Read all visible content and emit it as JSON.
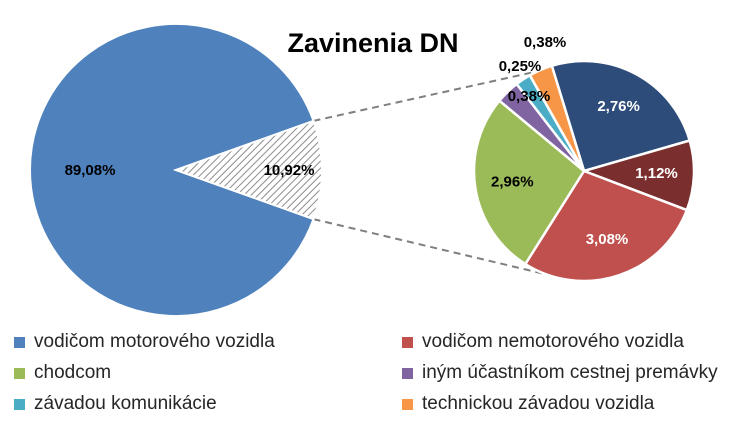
{
  "chart_data": {
    "type": "pie",
    "title": "Zavinenia DN",
    "main_pie": {
      "slices": [
        {
          "key": "motor",
          "label": "89,08%",
          "value": 89.08,
          "color": "#4F81BD"
        },
        {
          "key": "other",
          "label": "10,92%",
          "value": 10.92,
          "pattern": "hatched"
        }
      ]
    },
    "sub_pie": {
      "slices": [
        {
          "key": "nemotor",
          "label": "2,76%",
          "value": 2.76,
          "color": "#2E4C7A"
        },
        {
          "key": "inym",
          "label": "1,12%",
          "value": 1.12,
          "color": "#7A2E2E"
        },
        {
          "key": "chodcom",
          "label": "3,08%",
          "value": 3.08,
          "color": "#C0504D"
        },
        {
          "key": "zavadou",
          "label": "2,96%",
          "value": 2.96,
          "color": "#9BBB59"
        },
        {
          "key": "technickou",
          "label": "0,38%",
          "value": 0.38,
          "color": "#8064A2"
        },
        {
          "key": "ostatne1",
          "label": "0,25%",
          "value": 0.25,
          "color": "#4BACC6"
        },
        {
          "key": "ostatne2",
          "label": "0,38%",
          "value": 0.38,
          "color": "#F79646"
        }
      ]
    },
    "legend": [
      {
        "label": "vodičom motorového vozidla",
        "color": "#4F81BD"
      },
      {
        "label": "vodičom nemotorového vozidla",
        "color": "#C0504D"
      },
      {
        "label": "chodcom",
        "color": "#9BBB59"
      },
      {
        "label": "iným účastníkom cestnej premávky",
        "color": "#8064A2"
      },
      {
        "label": "závadou komunikácie",
        "color": "#4BACC6"
      },
      {
        "label": "technickou závadou vozidla",
        "color": "#F79646"
      }
    ],
    "legend_position": "bottom"
  }
}
